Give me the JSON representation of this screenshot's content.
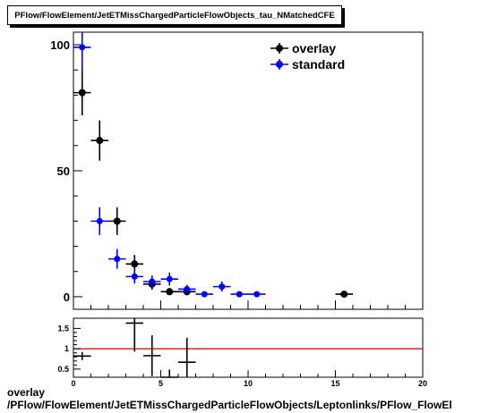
{
  "title": "PFlow/FlowElement/JetETMissChargedParticleFlowObjects_tau_NMatchedCFE",
  "footer": {
    "line1": "overlay",
    "line2": "/PFlow/FlowElement/JetETMissChargedParticleFlowObjects/Leptonlinks/PFlow_FlowEl"
  },
  "colors": {
    "overlay": "#000000",
    "standard": "#0000ff",
    "ratio_line": "#cc0000"
  },
  "chart_data": [
    {
      "type": "scatter",
      "xlim": [
        0,
        20
      ],
      "ylim": [
        -5,
        105
      ],
      "y_ticks": [
        0,
        50,
        100
      ],
      "legend_placement": "top-right",
      "grid": false,
      "series": [
        {
          "name": "overlay",
          "x": [
            0.5,
            1.5,
            2.5,
            3.5,
            4.5,
            5.5,
            6.5,
            15.5
          ],
          "y": [
            81,
            62,
            30,
            13,
            5,
            2,
            2,
            1
          ],
          "yerr": [
            9,
            8,
            5.5,
            3.6,
            2.2,
            1.4,
            1.4,
            1
          ]
        },
        {
          "name": "standard",
          "x": [
            0.5,
            1.5,
            2.5,
            3.5,
            4.5,
            5.5,
            6.5,
            7.5,
            8.5,
            9.5,
            10.5
          ],
          "y": [
            99,
            30,
            15,
            8,
            6,
            7,
            3,
            1,
            4,
            1,
            1
          ],
          "yerr": [
            10,
            5.5,
            3.9,
            2.8,
            2.4,
            2.6,
            1.7,
            1,
            2,
            1,
            1
          ]
        }
      ]
    },
    {
      "type": "scatter",
      "xlim": [
        0,
        20
      ],
      "ylim": [
        0.3,
        1.75
      ],
      "x_ticks": [
        0,
        5,
        10,
        15,
        20
      ],
      "y_ticks": [
        0.5,
        1,
        1.5
      ],
      "reference_line": 1,
      "series": [
        {
          "x": [
            0.5,
            3.5,
            4.5,
            5.5,
            6.5
          ],
          "y": [
            0.82,
            1.63,
            0.83,
            0.29,
            0.67
          ],
          "yerr": [
            0.1,
            0.7,
            0.5,
            0.2,
            0.6
          ]
        }
      ]
    }
  ]
}
